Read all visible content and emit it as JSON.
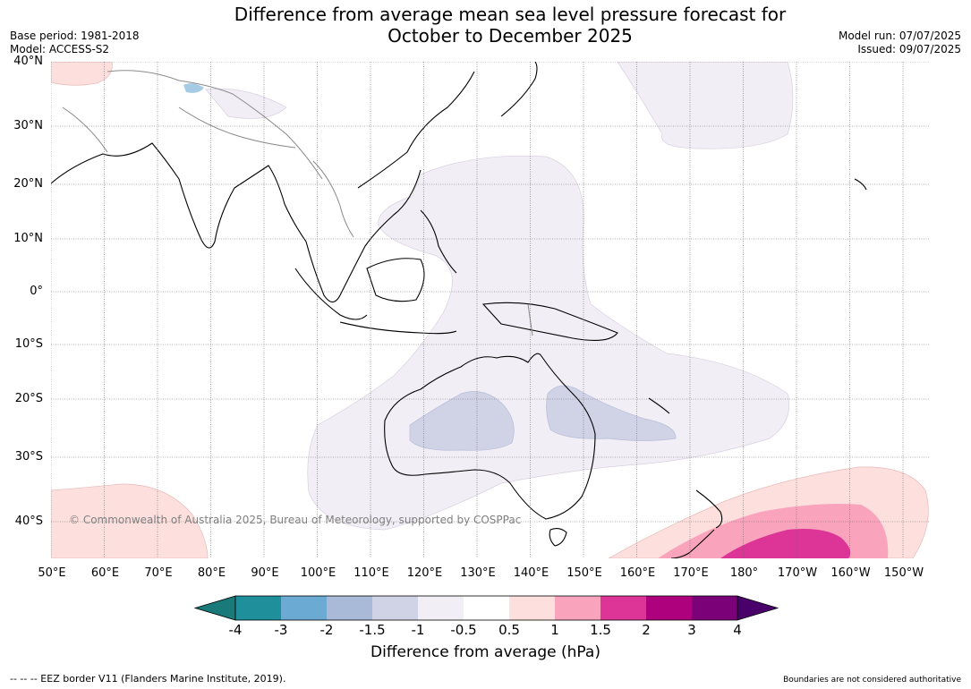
{
  "title_line1": "Difference from average mean sea level pressure forecast for",
  "title_line2": "October to December 2025",
  "base_period": "Base period: 1981-2018",
  "model": "Model: ACCESS-S2",
  "model_run": "Model run: 07/07/2025",
  "issued": "Issued: 09/07/2025",
  "lat_labels": [
    "40°N",
    "30°N",
    "20°N",
    "10°N",
    "0°",
    "10°S",
    "20°S",
    "30°S",
    "40°S"
  ],
  "lon_labels": [
    "50°E",
    "60°E",
    "70°E",
    "80°E",
    "90°E",
    "100°E",
    "110°E",
    "120°E",
    "130°E",
    "140°E",
    "150°E",
    "160°E",
    "170°E",
    "180°",
    "170°W",
    "160°W",
    "150°W"
  ],
  "colorbar": {
    "title": "Difference from average (hPa)",
    "labels": [
      "-4",
      "-3",
      "-2",
      "-1.5",
      "-1",
      "-0.5",
      "0.5",
      "1",
      "1.5",
      "2",
      "3",
      "4"
    ],
    "colors": [
      "#1a7a7a",
      "#1f8f9b",
      "#6aaad3",
      "#a9b9d8",
      "#d0d3e6",
      "#f1eef5",
      "#ffffff",
      "#fde0dd",
      "#f9a3bd",
      "#dd3497",
      "#ae017e",
      "#7a0177",
      "#49006a"
    ]
  },
  "copyright": "© Commonwealth of Australia 2025, Bureau of Meteorology, supported by COSPPac",
  "footer_left": "-- -- -- EEZ border V11 (Flanders Marine Institute, 2019).",
  "footer_right": "Boundaries are not considered authoritative"
}
